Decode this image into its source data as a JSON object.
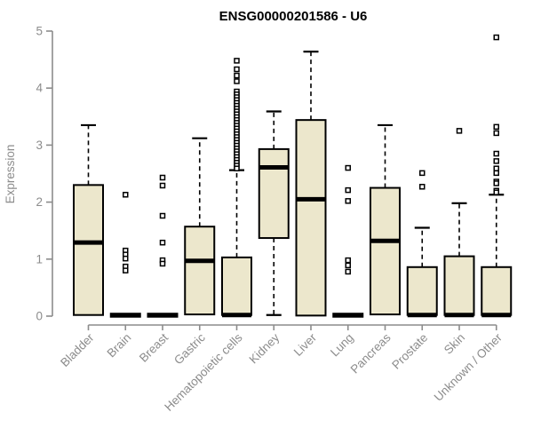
{
  "chart_data": {
    "type": "boxplot",
    "title": "ENSG00000201586 - U6",
    "xlabel": "",
    "ylabel": "Expression",
    "ylim": [
      0,
      5
    ],
    "yticks": [
      0,
      1,
      2,
      3,
      4,
      5
    ],
    "grid": false,
    "legend": "none",
    "categories": [
      "Bladder",
      "Brain",
      "Breast",
      "Gastric",
      "Hematopoietic cells",
      "Kidney",
      "Liver",
      "Lung",
      "Pancreas",
      "Prostate",
      "Skin",
      "Unknown / Other"
    ],
    "boxes": [
      {
        "category": "Bladder",
        "whisker_low": 0.02,
        "q1": 0.02,
        "median": 1.29,
        "q3": 2.3,
        "whisker_high": 3.35,
        "outliers": []
      },
      {
        "category": "Brain",
        "whisker_low": 0.02,
        "q1": 0.02,
        "median": 0.02,
        "q3": 0.02,
        "whisker_high": 0.02,
        "outliers": [
          2.13,
          1.15,
          1.08,
          1.01,
          0.87,
          0.8
        ]
      },
      {
        "category": "Breast",
        "whisker_low": 0.02,
        "q1": 0.02,
        "median": 0.02,
        "q3": 0.02,
        "whisker_high": 0.02,
        "outliers": [
          2.43,
          2.29,
          1.76,
          1.29,
          0.98,
          0.92
        ]
      },
      {
        "category": "Gastric",
        "whisker_low": 0.03,
        "q1": 0.03,
        "median": 0.97,
        "q3": 1.57,
        "whisker_high": 3.12,
        "outliers": []
      },
      {
        "category": "Hematopoietic cells",
        "whisker_low": 0.02,
        "q1": 0.02,
        "median": 0.02,
        "q3": 1.03,
        "whisker_high": 2.56,
        "outliers": [
          4.48,
          4.33,
          4.22,
          4.12,
          3.94,
          3.89,
          3.84,
          3.79,
          3.74,
          3.69,
          3.64,
          3.59,
          3.54,
          3.49,
          3.44,
          3.39,
          3.34,
          3.29,
          3.24,
          3.19,
          3.14,
          3.09,
          3.04,
          2.99,
          2.94,
          2.89,
          2.84,
          2.79,
          2.74,
          2.69,
          2.64,
          2.59
        ]
      },
      {
        "category": "Kidney",
        "whisker_low": 0.02,
        "q1": 1.37,
        "median": 2.61,
        "q3": 2.93,
        "whisker_high": 3.59,
        "outliers": []
      },
      {
        "category": "Liver",
        "whisker_low": 0.01,
        "q1": 0.01,
        "median": 2.05,
        "q3": 3.44,
        "whisker_high": 4.64,
        "outliers": []
      },
      {
        "category": "Lung",
        "whisker_low": 0.02,
        "q1": 0.02,
        "median": 0.02,
        "q3": 0.02,
        "whisker_high": 0.02,
        "outliers": [
          2.6,
          2.21,
          2.02,
          0.98,
          0.89,
          0.78
        ]
      },
      {
        "category": "Pancreas",
        "whisker_low": 0.03,
        "q1": 0.03,
        "median": 1.32,
        "q3": 2.25,
        "whisker_high": 3.35,
        "outliers": []
      },
      {
        "category": "Prostate",
        "whisker_low": 0.02,
        "q1": 0.02,
        "median": 0.02,
        "q3": 0.86,
        "whisker_high": 1.55,
        "outliers": [
          2.51,
          2.27
        ]
      },
      {
        "category": "Skin",
        "whisker_low": 0.02,
        "q1": 0.02,
        "median": 0.02,
        "q3": 1.05,
        "whisker_high": 1.98,
        "outliers": [
          3.25
        ]
      },
      {
        "category": "Unknown / Other",
        "whisker_low": 0.02,
        "q1": 0.02,
        "median": 0.02,
        "q3": 0.86,
        "whisker_high": 2.13,
        "outliers": [
          4.89,
          3.32,
          3.21,
          2.85,
          2.72,
          2.59,
          2.51,
          2.36,
          2.33,
          2.2,
          2.17
        ]
      }
    ],
    "colors": {
      "box_fill": "#ece7cc",
      "box_stroke": "#000000",
      "median": "#000000",
      "whisker": "#000000",
      "outlier_stroke": "#000000",
      "outlier_fill": "#ffffff",
      "axis": "#8c8c8c",
      "tick_label": "#8c8c8c",
      "title": "#000000"
    }
  }
}
